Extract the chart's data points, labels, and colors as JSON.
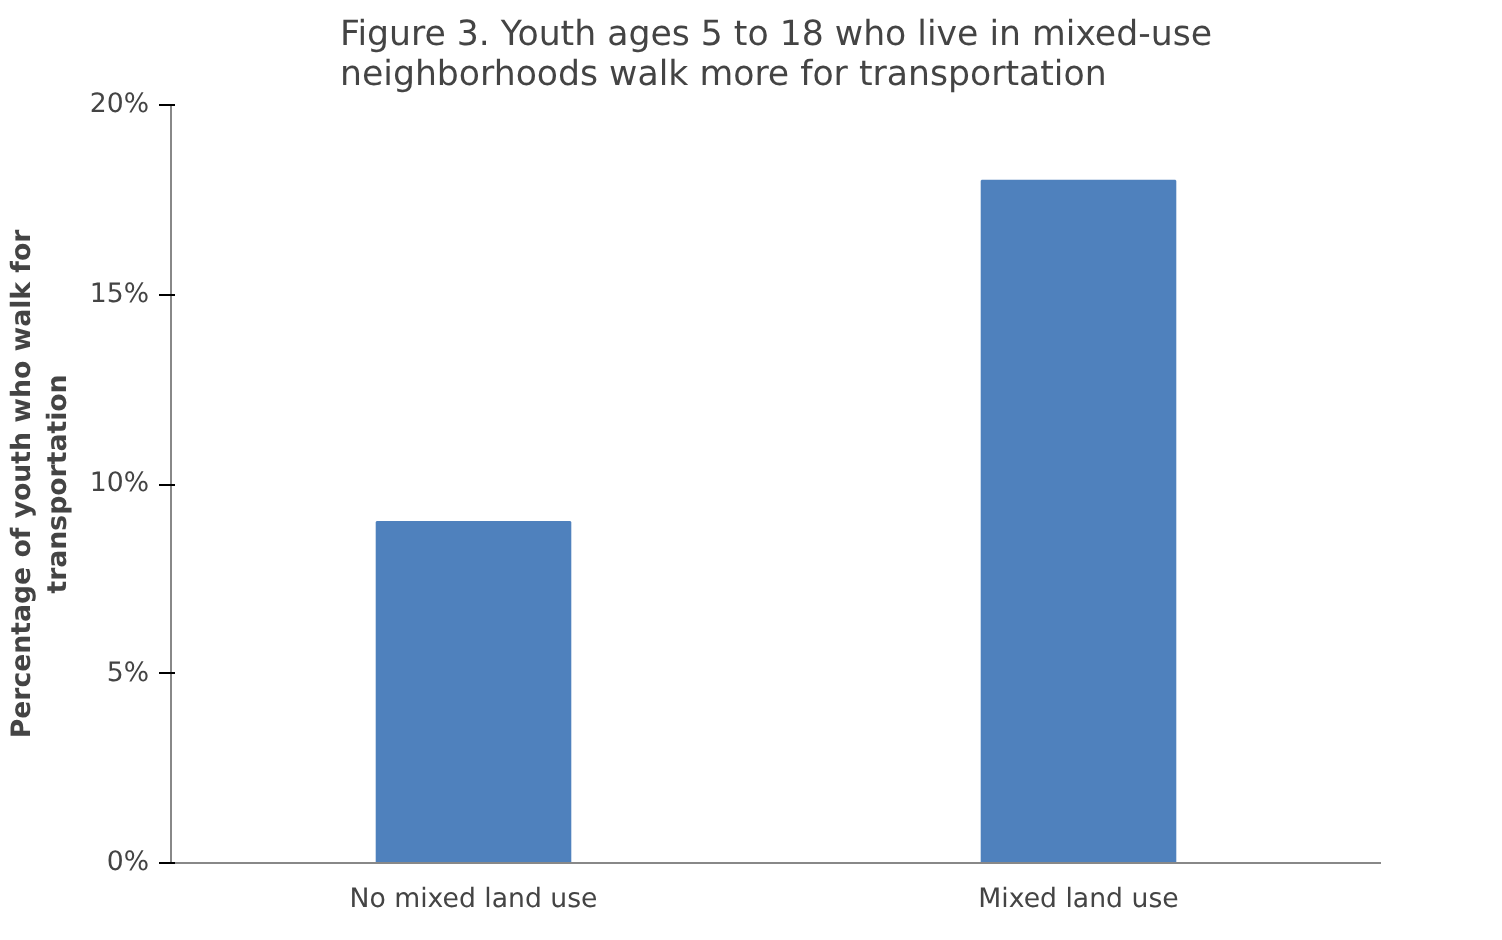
{
  "chart_data": {
    "type": "bar",
    "title": "Figure 3. Youth ages 5 to 18 who live in mixed-use neighborhoods walk more for transportation",
    "ylabel": "Percentage of youth who walk for transportation",
    "categories": [
      "No mixed land use",
      "Mixed land use"
    ],
    "values": [
      9,
      18
    ],
    "color": "#4f81bd",
    "ylim": [
      0,
      20
    ],
    "yticks": [
      {
        "value": 0,
        "label": "0%"
      },
      {
        "value": 5,
        "label": "5%"
      },
      {
        "value": 10,
        "label": "10%"
      },
      {
        "value": 15,
        "label": "15%"
      },
      {
        "value": 20,
        "label": "20%"
      }
    ],
    "grid": false
  }
}
